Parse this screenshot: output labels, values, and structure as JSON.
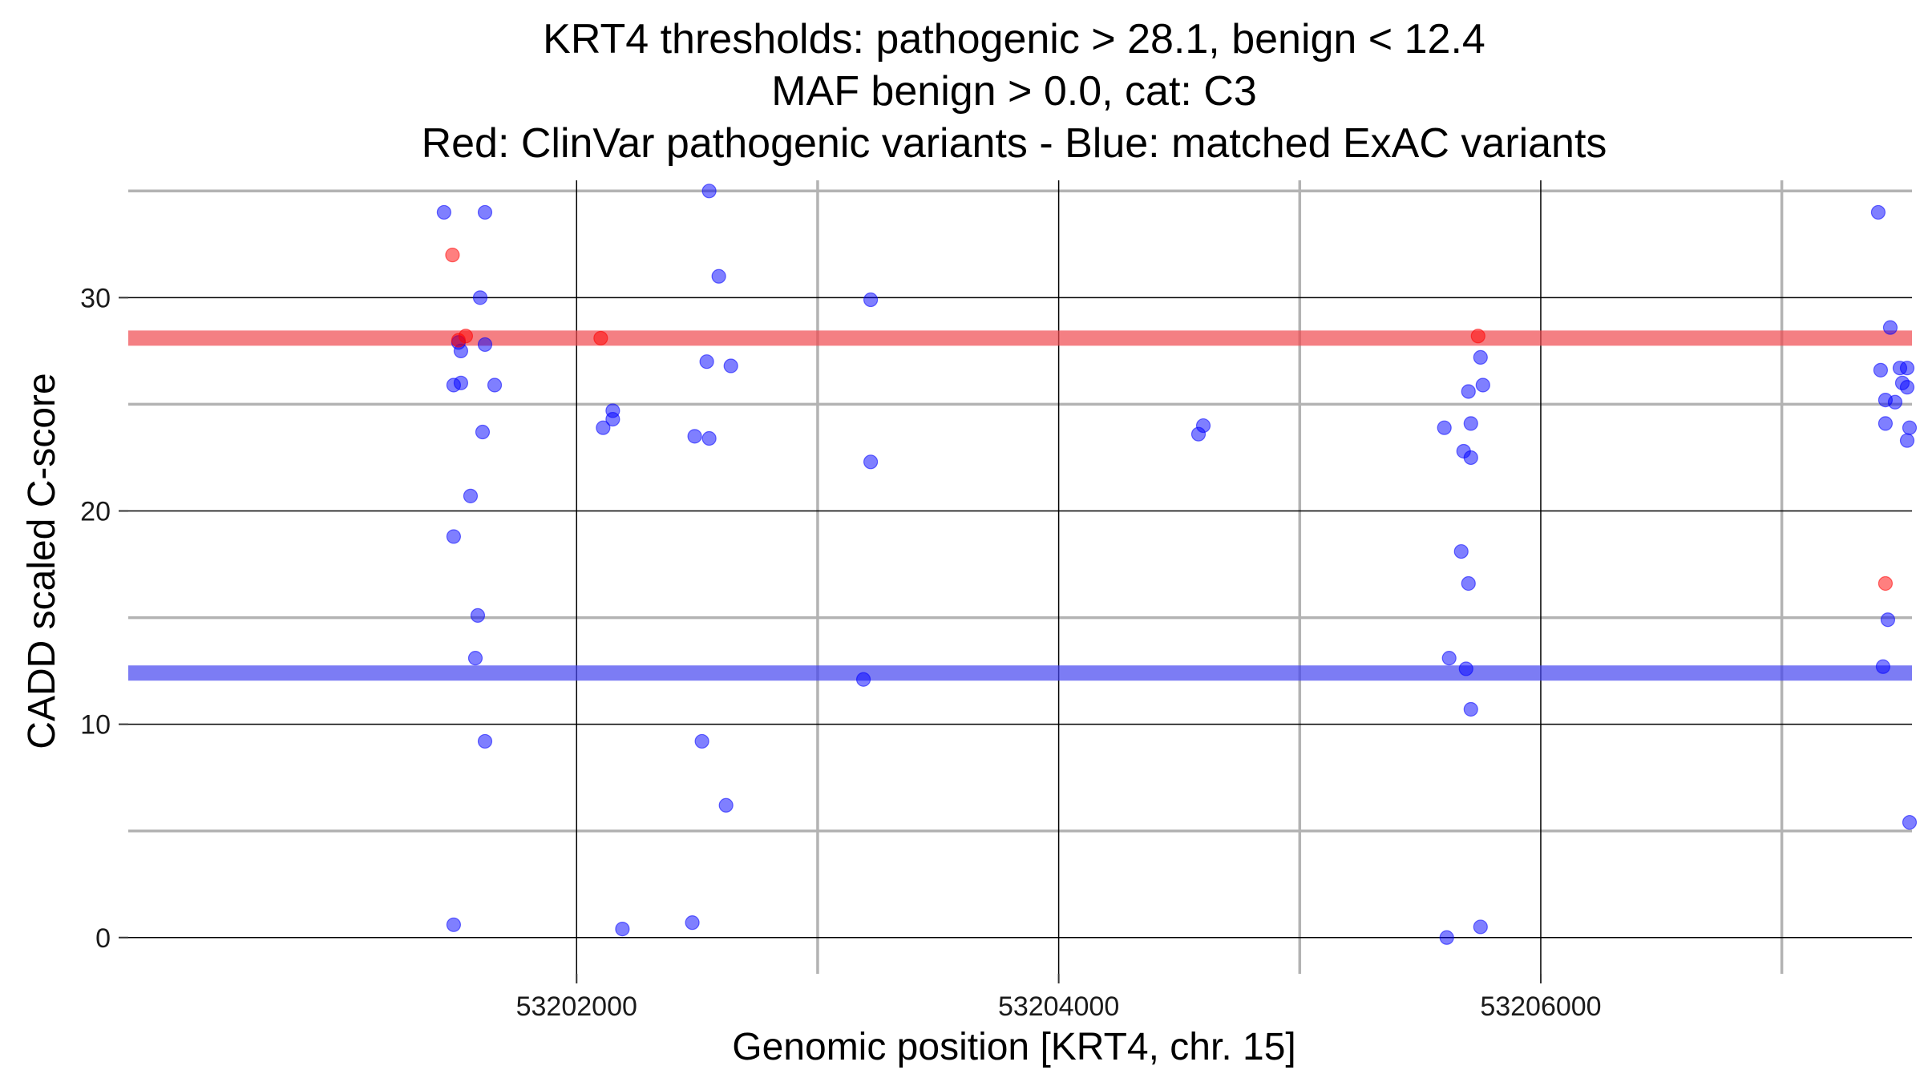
{
  "chart_data": {
    "type": "scatter",
    "title_lines": [
      "KRT4 thresholds: pathogenic > 28.1, benign < 12.4",
      "MAF benign > 0.0, cat: C3",
      "Red: ClinVar pathogenic variants - Blue: matched ExAC variants"
    ],
    "xlabel": "Genomic position [KRT4, chr. 15]",
    "ylabel": "CADD scaled C-score",
    "xlim": [
      53200140,
      53207540
    ],
    "ylim": [
      -1.7,
      35.5
    ],
    "x_ticks": [
      53202000,
      53204000,
      53206000
    ],
    "x_tick_labels": [
      "53202000",
      "53204000",
      "53206000"
    ],
    "x_minor_ticks": [
      53203000,
      53205000,
      53207000
    ],
    "y_ticks": [
      0,
      10,
      20,
      30
    ],
    "y_tick_labels": [
      "0",
      "10",
      "20",
      "30"
    ],
    "y_minor_ticks": [
      5,
      15,
      25,
      35
    ],
    "grid": true,
    "thresholds": [
      {
        "name": "pathogenic",
        "value": 28.1,
        "color": "#f0484f"
      },
      {
        "name": "benign",
        "value": 12.4,
        "color": "#4444f0"
      }
    ],
    "series": [
      {
        "name": "ClinVar pathogenic variants",
        "color": "#ff0000",
        "points": [
          [
            53201485,
            32.0
          ],
          [
            53201510,
            28.0
          ],
          [
            53201540,
            28.2
          ],
          [
            53202100,
            28.1
          ],
          [
            53205740,
            28.2
          ],
          [
            53207430,
            16.6
          ]
        ]
      },
      {
        "name": "matched ExAC variants",
        "color": "#0000ff",
        "points": [
          [
            53201450,
            34.0
          ],
          [
            53201620,
            34.0
          ],
          [
            53201600,
            30.0
          ],
          [
            53201510,
            27.9
          ],
          [
            53201520,
            27.5
          ],
          [
            53201620,
            27.8
          ],
          [
            53201490,
            25.9
          ],
          [
            53201520,
            26.0
          ],
          [
            53201660,
            25.9
          ],
          [
            53201610,
            23.7
          ],
          [
            53201560,
            20.7
          ],
          [
            53201490,
            18.8
          ],
          [
            53201590,
            15.1
          ],
          [
            53201580,
            13.1
          ],
          [
            53201620,
            9.2
          ],
          [
            53201490,
            0.6
          ],
          [
            53202550,
            35.0
          ],
          [
            53202590,
            31.0
          ],
          [
            53202150,
            24.7
          ],
          [
            53202150,
            24.3
          ],
          [
            53202110,
            23.9
          ],
          [
            53202540,
            27.0
          ],
          [
            53202640,
            26.8
          ],
          [
            53202490,
            23.5
          ],
          [
            53202550,
            23.4
          ],
          [
            53202520,
            9.2
          ],
          [
            53202620,
            6.2
          ],
          [
            53202190,
            0.4
          ],
          [
            53202480,
            0.7
          ],
          [
            53203220,
            29.9
          ],
          [
            53203220,
            22.3
          ],
          [
            53203190,
            12.1
          ],
          [
            53204580,
            23.6
          ],
          [
            53204600,
            24.0
          ],
          [
            53205600,
            23.9
          ],
          [
            53205670,
            18.1
          ],
          [
            53205700,
            16.6
          ],
          [
            53205750,
            27.2
          ],
          [
            53205700,
            25.6
          ],
          [
            53205760,
            25.9
          ],
          [
            53205710,
            24.1
          ],
          [
            53205680,
            22.8
          ],
          [
            53205710,
            22.5
          ],
          [
            53205620,
            13.1
          ],
          [
            53205690,
            12.6
          ],
          [
            53205710,
            10.7
          ],
          [
            53205610,
            0.0
          ],
          [
            53205750,
            0.5
          ],
          [
            53207400,
            34.0
          ],
          [
            53207450,
            28.6
          ],
          [
            53207410,
            26.6
          ],
          [
            53207490,
            26.7
          ],
          [
            53207520,
            26.7
          ],
          [
            53207500,
            26.0
          ],
          [
            53207520,
            25.8
          ],
          [
            53207430,
            25.2
          ],
          [
            53207470,
            25.1
          ],
          [
            53207430,
            24.1
          ],
          [
            53207530,
            23.9
          ],
          [
            53207520,
            23.3
          ],
          [
            53207440,
            14.9
          ],
          [
            53207420,
            12.7
          ],
          [
            53207530,
            5.4
          ]
        ]
      }
    ]
  }
}
